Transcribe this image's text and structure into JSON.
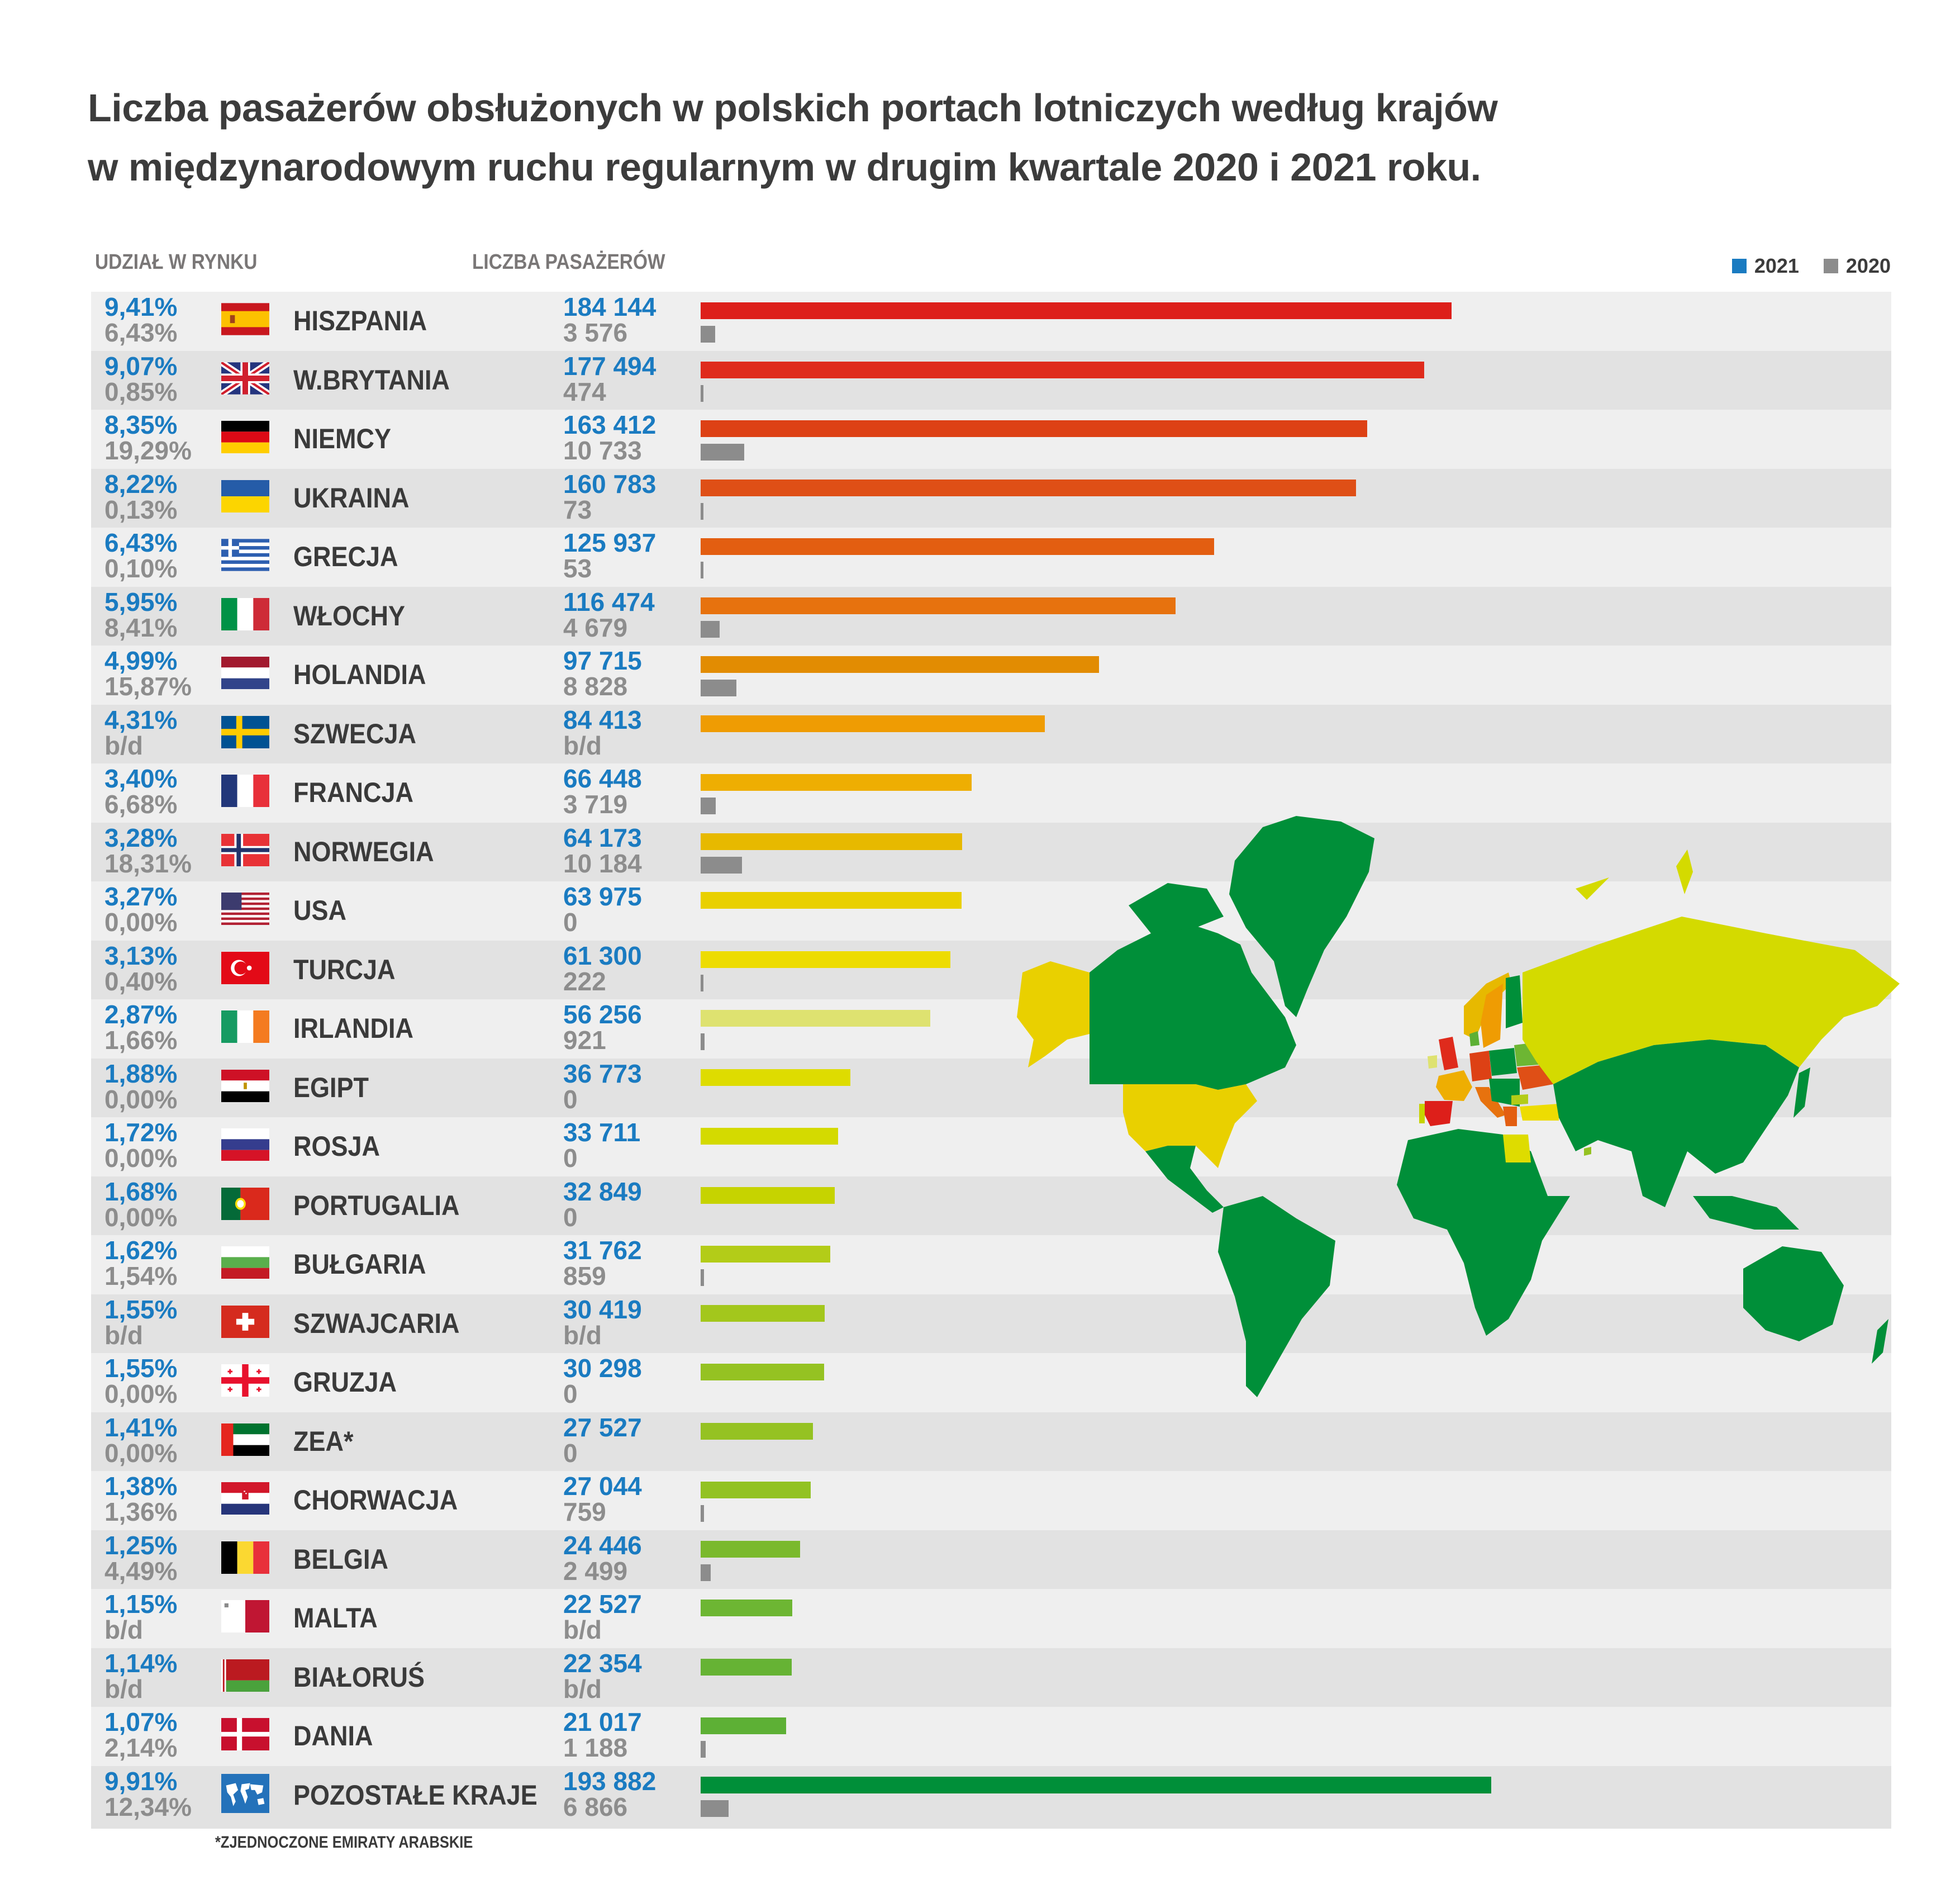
{
  "title": {
    "line1": "Liczba pasażerów obsłużonych w polskich portach lotniczych według krajów",
    "line2": "w międzynarodowym ruchu regularnym w drugim kwartale 2020 i 2021 roku."
  },
  "headers": {
    "market_share": "UDZIAŁ W RYNKU",
    "passengers": "LICZBA PASAŻERÓW"
  },
  "legend": [
    {
      "label": "2021",
      "color": "#1a7bc1"
    },
    {
      "label": "2020",
      "color": "#8c8c8c"
    }
  ],
  "footnote": "*ZJEDNOCZONE EMIRATY ARABSKIE",
  "rows": [
    {
      "share_2021": "9,41%",
      "share_2020": "6,43%",
      "country": "HISZPANIA",
      "flag": "spain-flag",
      "pax_2021": "184 144",
      "pax_2020": "3 576",
      "bar_color": "#dd1f1a"
    },
    {
      "share_2021": "9,07%",
      "share_2020": "0,85%",
      "country": "W.BRYTANIA",
      "flag": "uk-flag",
      "pax_2021": "177 494",
      "pax_2020": "474",
      "bar_color": "#df2b1c"
    },
    {
      "share_2021": "8,35%",
      "share_2020": "19,29%",
      "country": "NIEMCY",
      "flag": "germany-flag",
      "pax_2021": "163 412",
      "pax_2020": "10 733",
      "bar_color": "#dd4115"
    },
    {
      "share_2021": "8,22%",
      "share_2020": "0,13%",
      "country": "UKRAINA",
      "flag": "ukraine-flag",
      "pax_2021": "160 783",
      "pax_2020": "73",
      "bar_color": "#df4f16"
    },
    {
      "share_2021": "6,43%",
      "share_2020": "0,10%",
      "country": "GRECJA",
      "flag": "greece-flag",
      "pax_2021": "125 937",
      "pax_2020": "53",
      "bar_color": "#e35e11"
    },
    {
      "share_2021": "5,95%",
      "share_2020": "8,41%",
      "country": "WŁOCHY",
      "flag": "italy-flag",
      "pax_2021": "116 474",
      "pax_2020": "4 679",
      "bar_color": "#e7720e"
    },
    {
      "share_2021": "4,99%",
      "share_2020": "15,87%",
      "country": "HOLANDIA",
      "flag": "netherlands-flag",
      "pax_2021": "97 715",
      "pax_2020": "8 828",
      "bar_color": "#e28c02"
    },
    {
      "share_2021": "4,31%",
      "share_2020": "b/d",
      "country": "SZWECJA",
      "flag": "sweden-flag",
      "pax_2021": "84 413",
      "pax_2020": "b/d",
      "bar_color": "#ef9c03"
    },
    {
      "share_2021": "3,40%",
      "share_2020": "6,68%",
      "country": "FRANCJA",
      "flag": "france-flag",
      "pax_2021": "66 448",
      "pax_2020": "3 719",
      "bar_color": "#eeae02"
    },
    {
      "share_2021": "3,28%",
      "share_2020": "18,31%",
      "country": "NORWEGIA",
      "flag": "norway-flag",
      "pax_2021": "64 173",
      "pax_2020": "10 184",
      "bar_color": "#e7b900"
    },
    {
      "share_2021": "3,27%",
      "share_2020": "0,00%",
      "country": "USA",
      "flag": "usa-flag",
      "pax_2021": "63 975",
      "pax_2020": "0",
      "bar_color": "#e9d000"
    },
    {
      "share_2021": "3,13%",
      "share_2020": "0,40%",
      "country": "TURCJA",
      "flag": "turkey-flag",
      "pax_2021": "61 300",
      "pax_2020": "222",
      "bar_color": "#eddc02"
    },
    {
      "share_2021": "2,87%",
      "share_2020": "1,66%",
      "country": "IRLANDIA",
      "flag": "ireland-flag",
      "pax_2021": "56 256",
      "pax_2020": "921",
      "bar_color": "#dee270"
    },
    {
      "share_2021": "1,88%",
      "share_2020": "0,00%",
      "country": "EGIPT",
      "flag": "egypt-flag",
      "pax_2021": "36 773",
      "pax_2020": "0",
      "bar_color": "#dedc00"
    },
    {
      "share_2021": "1,72%",
      "share_2020": "0,00%",
      "country": "ROSJA",
      "flag": "russia-flag",
      "pax_2021": "33 711",
      "pax_2020": "0",
      "bar_color": "#d4da00"
    },
    {
      "share_2021": "1,68%",
      "share_2020": "0,00%",
      "country": "PORTUGALIA",
      "flag": "portugal-flag",
      "pax_2021": "32 849",
      "pax_2020": "0",
      "bar_color": "#c6d300"
    },
    {
      "share_2021": "1,62%",
      "share_2020": "1,54%",
      "country": "BUŁGARIA",
      "flag": "bulgaria-flag",
      "pax_2021": "31 762",
      "pax_2020": "859",
      "bar_color": "#b3cc18"
    },
    {
      "share_2021": "1,55%",
      "share_2020": "b/d",
      "country": "SZWAJCARIA",
      "flag": "switzerland-flag",
      "pax_2021": "30 419",
      "pax_2020": "b/d",
      "bar_color": "#a3c71c"
    },
    {
      "share_2021": "1,55%",
      "share_2020": "0,00%",
      "country": "GRUZJA",
      "flag": "georgia-flag",
      "pax_2021": "30 298",
      "pax_2020": "0",
      "bar_color": "#95c222"
    },
    {
      "share_2021": "1,41%",
      "share_2020": "0,00%",
      "country": "ZEA*",
      "flag": "uae-flag",
      "pax_2021": "27 527",
      "pax_2020": "0",
      "bar_color": "#95c222"
    },
    {
      "share_2021": "1,38%",
      "share_2020": "1,36%",
      "country": "CHORWACJA",
      "flag": "croatia-flag",
      "pax_2021": "27 044",
      "pax_2020": "759",
      "bar_color": "#92c223"
    },
    {
      "share_2021": "1,25%",
      "share_2020": "4,49%",
      "country": "BELGIA",
      "flag": "belgium-flag",
      "pax_2021": "24 446",
      "pax_2020": "2 499",
      "bar_color": "#7ab92c"
    },
    {
      "share_2021": "1,15%",
      "share_2020": "b/d",
      "country": "MALTA",
      "flag": "malta-flag",
      "pax_2021": "22 527",
      "pax_2020": "b/d",
      "bar_color": "#6db633"
    },
    {
      "share_2021": "1,14%",
      "share_2020": "b/d",
      "country": "BIAŁORUŚ",
      "flag": "belarus-flag",
      "pax_2021": "22 354",
      "pax_2020": "b/d",
      "bar_color": "#66b334"
    },
    {
      "share_2021": "1,07%",
      "share_2020": "2,14%",
      "country": "DANIA",
      "flag": "denmark-flag",
      "pax_2021": "21 017",
      "pax_2020": "1 188",
      "bar_color": "#5db035"
    },
    {
      "share_2021": "9,91%",
      "share_2020": "12,34%",
      "country": "POZOSTAŁE KRAJE",
      "flag": "world-icon",
      "pax_2021": "193 882",
      "pax_2020": "6 866",
      "bar_color": "#008f39"
    }
  ],
  "chart_data": {
    "type": "bar",
    "orientation": "horizontal",
    "title": "Liczba pasażerów obsłużonych w polskich portach lotniczych według krajów w międzynarodowym ruchu regularnym w drugim kwartale 2020 i 2021 roku.",
    "xlabel": "LICZBA PASAŻERÓW",
    "ylabel": "",
    "categories": [
      "HISZPANIA",
      "W.BRYTANIA",
      "NIEMCY",
      "UKRAINA",
      "GRECJA",
      "WŁOCHY",
      "HOLANDIA",
      "SZWECJA",
      "FRANCJA",
      "NORWEGIA",
      "USA",
      "TURCJA",
      "IRLANDIA",
      "EGIPT",
      "ROSJA",
      "PORTUGALIA",
      "BUŁGARIA",
      "SZWAJCARIA",
      "GRUZJA",
      "ZEA*",
      "CHORWACJA",
      "BELGIA",
      "MALTA",
      "BIAŁORUŚ",
      "DANIA",
      "POZOSTAŁE KRAJE"
    ],
    "series": [
      {
        "name": "2021",
        "values": [
          184144,
          177494,
          163412,
          160783,
          125937,
          116474,
          97715,
          84413,
          66448,
          64173,
          63975,
          61300,
          56256,
          36773,
          33711,
          32849,
          31762,
          30419,
          30298,
          27527,
          27044,
          24446,
          22527,
          22354,
          21017,
          193882
        ]
      },
      {
        "name": "2020",
        "values": [
          3576,
          474,
          10733,
          73,
          53,
          4679,
          8828,
          null,
          3719,
          10184,
          0,
          222,
          921,
          0,
          0,
          0,
          859,
          null,
          0,
          0,
          759,
          2499,
          null,
          null,
          1188,
          6866
        ]
      }
    ],
    "market_share": [
      {
        "name": "2021",
        "values": [
          "9,41%",
          "9,07%",
          "8,35%",
          "8,22%",
          "6,43%",
          "5,95%",
          "4,99%",
          "4,31%",
          "3,40%",
          "3,28%",
          "3,27%",
          "3,13%",
          "2,87%",
          "1,88%",
          "1,72%",
          "1,68%",
          "1,62%",
          "1,55%",
          "1,55%",
          "1,41%",
          "1,38%",
          "1,25%",
          "1,15%",
          "1,14%",
          "1,07%",
          "9,91%"
        ]
      },
      {
        "name": "2020",
        "values": [
          "6,43%",
          "0,85%",
          "19,29%",
          "0,13%",
          "0,10%",
          "8,41%",
          "15,87%",
          "b/d",
          "6,68%",
          "18,31%",
          "0,00%",
          "0,40%",
          "1,66%",
          "0,00%",
          "0,00%",
          "0,00%",
          "1,54%",
          "b/d",
          "0,00%",
          "0,00%",
          "1,36%",
          "4,49%",
          "b/d",
          "b/d",
          "2,14%",
          "12,34%"
        ]
      }
    ],
    "legend": [
      "2021",
      "2020"
    ],
    "legend_position": "top-right",
    "grid": false,
    "annotations": [
      "*ZJEDNOCZONE EMIRATY ARABSKIE"
    ]
  }
}
